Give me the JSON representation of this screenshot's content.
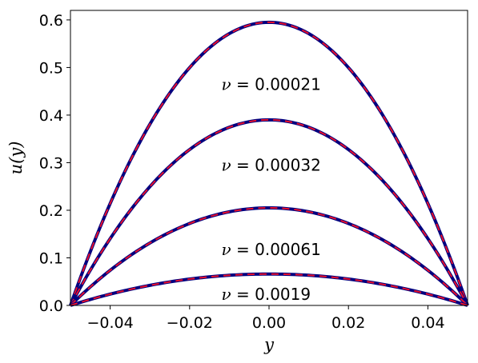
{
  "chart_data": {
    "type": "line",
    "xlabel": "y",
    "ylabel": "u(y)",
    "xlim": [
      -0.05,
      0.05
    ],
    "ylim": [
      0.0,
      0.62
    ],
    "xticks": [
      -0.04,
      -0.02,
      0.0,
      0.02,
      0.04
    ],
    "xtick_labels": [
      "−0.04",
      "−0.02",
      "0.00",
      "0.02",
      "0.04"
    ],
    "yticks": [
      0.0,
      0.1,
      0.2,
      0.3,
      0.4,
      0.5,
      0.6
    ],
    "ytick_labels": [
      "0.0",
      "0.1",
      "0.2",
      "0.3",
      "0.4",
      "0.5",
      "0.6"
    ],
    "grid": false,
    "colors": {
      "solid": "#00007f",
      "dashed": "#e8102c"
    },
    "series": [
      {
        "peak": 0.595,
        "x": [
          -0.05,
          -0.025,
          0.0,
          0.025,
          0.05
        ],
        "y": [
          0.0,
          0.446,
          0.595,
          0.446,
          0.0
        ]
      },
      {
        "peak": 0.39,
        "x": [
          -0.05,
          -0.025,
          0.0,
          0.025,
          0.05
        ],
        "y": [
          0.0,
          0.293,
          0.39,
          0.293,
          0.0
        ]
      },
      {
        "peak": 0.205,
        "x": [
          -0.05,
          -0.025,
          0.0,
          0.025,
          0.05
        ],
        "y": [
          0.0,
          0.154,
          0.205,
          0.154,
          0.0
        ]
      },
      {
        "peak": 0.066,
        "x": [
          -0.05,
          -0.025,
          0.0,
          0.025,
          0.05
        ],
        "y": [
          0.0,
          0.05,
          0.066,
          0.05,
          0.0
        ]
      }
    ],
    "annotations": [
      {
        "symbol": "ν",
        "eq": " = ",
        "value": "0.00021",
        "x": -0.012,
        "y": 0.453
      },
      {
        "symbol": "ν",
        "eq": " = ",
        "value": "0.00032",
        "x": -0.012,
        "y": 0.283
      },
      {
        "symbol": "ν",
        "eq": " = ",
        "value": "0.00061",
        "x": -0.012,
        "y": 0.106
      },
      {
        "symbol": "ν",
        "eq": " = ",
        "value": "0.0019",
        "x": -0.012,
        "y": 0.012
      }
    ]
  }
}
